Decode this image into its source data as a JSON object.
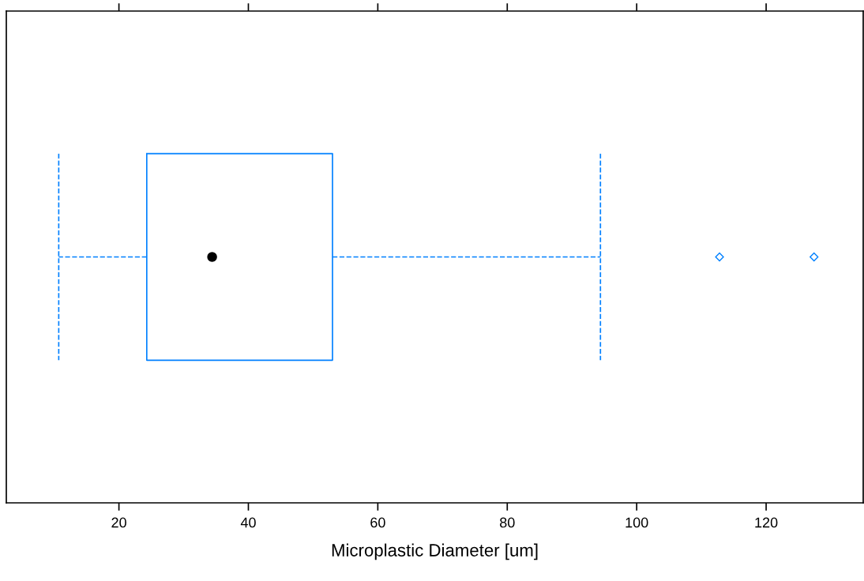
{
  "chart_data": {
    "type": "box",
    "orientation": "horizontal",
    "xlabel": "Microplastic Diameter [um]",
    "categories": [
      null
    ],
    "boxes": [
      {
        "low": 10.7,
        "q1": 24.3,
        "median": 34.4,
        "q3": 53.0,
        "high": 94.4,
        "outliers": [
          112.8,
          127.4
        ]
      }
    ],
    "color": "#0080ff",
    "line_style": "dashed",
    "marker": "diamond",
    "xlim": [
      2.6,
      135
    ],
    "xticks": [
      20,
      40,
      60,
      80,
      100,
      120
    ],
    "tick_labels": "x",
    "grid": false
  }
}
